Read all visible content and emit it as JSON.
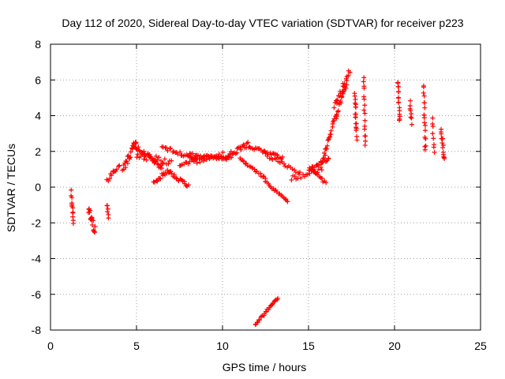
{
  "chart_data": {
    "type": "scatter",
    "title": "Day 112 of 2020, Sidereal Day-to-day VTEC variation (SDTVAR) for receiver p223",
    "xlabel": "GPS time / hours",
    "ylabel": "SDTVAR / TECUs",
    "xlim": [
      0,
      25
    ],
    "ylim": [
      -8,
      8
    ],
    "xticks": [
      0,
      5,
      10,
      15,
      20,
      25
    ],
    "yticks": [
      -8,
      -6,
      -4,
      -2,
      0,
      2,
      4,
      6,
      8
    ],
    "grid": true,
    "marker": "+",
    "color": "#ff0000",
    "series": [
      {
        "name": "p223",
        "segments": [
          {
            "t0": 1.2,
            "t1": 1.35,
            "v0": -0.3,
            "v1": -2.0,
            "n": 12,
            "s": 0.3
          },
          {
            "t0": 2.2,
            "t1": 2.6,
            "v0": -1.3,
            "v1": -2.4,
            "n": 18,
            "s": 0.5
          },
          {
            "t0": 3.3,
            "t1": 3.35,
            "v0": -1.0,
            "v1": -1.7,
            "n": 6,
            "s": 0.2
          },
          {
            "t0": 3.3,
            "t1": 4.0,
            "v0": 0.4,
            "v1": 1.2,
            "n": 12,
            "s": 0.3
          },
          {
            "t0": 4.2,
            "t1": 5.0,
            "v0": 1.0,
            "v1": 2.5,
            "n": 22,
            "s": 0.4
          },
          {
            "t0": 4.8,
            "t1": 6.5,
            "v0": 2.4,
            "v1": 1.1,
            "n": 30,
            "s": 0.25
          },
          {
            "t0": 5.0,
            "t1": 7.0,
            "v0": 1.8,
            "v1": 1.4,
            "n": 25,
            "s": 0.35
          },
          {
            "t0": 6.0,
            "t1": 7.0,
            "v0": 0.3,
            "v1": 1.0,
            "n": 18,
            "s": 0.3
          },
          {
            "t0": 6.5,
            "t1": 8.5,
            "v0": 2.2,
            "v1": 1.6,
            "n": 25,
            "s": 0.25
          },
          {
            "t0": 7.0,
            "t1": 8.0,
            "v0": 0.8,
            "v1": 0.0,
            "n": 18,
            "s": 0.3
          },
          {
            "t0": 7.5,
            "t1": 10.0,
            "v0": 1.2,
            "v1": 1.8,
            "n": 30,
            "s": 0.3
          },
          {
            "t0": 8.0,
            "t1": 10.5,
            "v0": 1.8,
            "v1": 1.6,
            "n": 30,
            "s": 0.2
          },
          {
            "t0": 10.0,
            "t1": 11.5,
            "v0": 1.6,
            "v1": 2.4,
            "n": 25,
            "s": 0.25
          },
          {
            "t0": 11.0,
            "t1": 12.5,
            "v0": 1.6,
            "v1": 0.5,
            "n": 20,
            "s": 0.15
          },
          {
            "t0": 11.5,
            "t1": 13.5,
            "v0": 2.3,
            "v1": 1.6,
            "n": 25,
            "s": 0.2
          },
          {
            "t0": 12.5,
            "t1": 14.5,
            "v0": 1.8,
            "v1": 0.8,
            "n": 20,
            "s": 0.2
          },
          {
            "t0": 12.5,
            "t1": 13.8,
            "v0": 0.3,
            "v1": -0.8,
            "n": 18,
            "s": 0.12
          },
          {
            "t0": 14.0,
            "t1": 15.8,
            "v0": 0.5,
            "v1": 1.0,
            "n": 20,
            "s": 0.3
          },
          {
            "t0": 15.0,
            "t1": 16.2,
            "v0": 1.0,
            "v1": 1.6,
            "n": 18,
            "s": 0.2
          },
          {
            "t0": 15.2,
            "t1": 16.0,
            "v0": 1.0,
            "v1": 0.2,
            "n": 12,
            "s": 0.15
          },
          {
            "t0": 15.8,
            "t1": 17.2,
            "v0": 1.5,
            "v1": 5.8,
            "n": 40,
            "s": 0.35
          },
          {
            "t0": 16.5,
            "t1": 17.4,
            "v0": 4.5,
            "v1": 6.5,
            "n": 20,
            "s": 0.3
          },
          {
            "t0": 11.9,
            "t1": 13.2,
            "v0": -7.7,
            "v1": -6.2,
            "n": 25,
            "s": 0.12
          },
          {
            "t0": 17.7,
            "t1": 17.8,
            "v0": 5.2,
            "v1": 2.8,
            "n": 18,
            "s": 0.4
          },
          {
            "t0": 18.2,
            "t1": 18.3,
            "v0": 6.2,
            "v1": 2.2,
            "n": 16,
            "s": 0.3
          },
          {
            "t0": 20.2,
            "t1": 20.3,
            "v0": 5.9,
            "v1": 3.8,
            "n": 16,
            "s": 0.3
          },
          {
            "t0": 20.9,
            "t1": 21.0,
            "v0": 4.8,
            "v1": 3.6,
            "n": 8,
            "s": 0.2
          },
          {
            "t0": 21.7,
            "t1": 21.8,
            "v0": 5.7,
            "v1": 2.0,
            "n": 18,
            "s": 0.35
          },
          {
            "t0": 22.2,
            "t1": 22.3,
            "v0": 3.9,
            "v1": 1.9,
            "n": 8,
            "s": 0.2
          },
          {
            "t0": 22.7,
            "t1": 22.9,
            "v0": 3.2,
            "v1": 1.6,
            "n": 14,
            "s": 0.3
          }
        ]
      }
    ]
  }
}
